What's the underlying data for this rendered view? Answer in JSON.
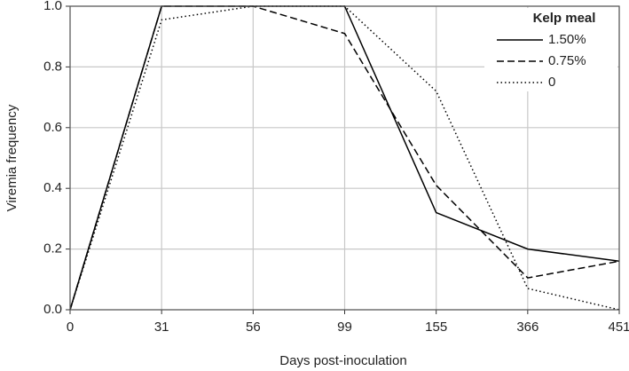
{
  "chart_data": {
    "type": "line",
    "x_label": "Days post-inoculation",
    "y_label": "Viremia frequency",
    "legend_title": "Kelp meal",
    "legend": "top-right",
    "grid": true,
    "categories": [
      "0",
      "31",
      "56",
      "99",
      "155",
      "366",
      "451"
    ],
    "series": [
      {
        "name": "1.50%",
        "color": "#000000",
        "style": "solid",
        "values": [
          0,
          1.0,
          1.0,
          1.0,
          0.32,
          0.2,
          0.16
        ]
      },
      {
        "name": "0.75%",
        "color": "#000000",
        "style": "dashed",
        "values": [
          0,
          1.0,
          1.0,
          0.91,
          0.41,
          0.105,
          0.16
        ]
      },
      {
        "name": "0",
        "color": "#000000",
        "style": "dotted",
        "values": [
          0,
          0.955,
          1.0,
          1.0,
          0.72,
          0.07,
          0.0
        ]
      }
    ],
    "ylim": [
      0,
      1
    ],
    "yticks": [
      {
        "value": 0,
        "label": "0.0"
      },
      0.2,
      0.4,
      0.6,
      0.8,
      {
        "value": 1,
        "label": "1.0"
      }
    ]
  }
}
